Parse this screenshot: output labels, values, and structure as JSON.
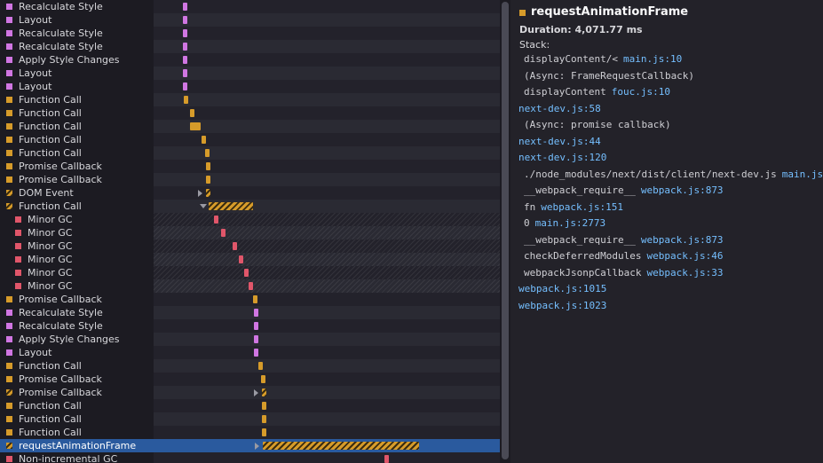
{
  "colors": {
    "layout": "#d076e2",
    "js": "#d69b2a",
    "gc": "#e0566a",
    "selected_row": "#2a5a9e",
    "link": "#75bfff"
  },
  "markers": [
    {
      "name": "Recalculate Style",
      "color": "layout"
    },
    {
      "name": "Layout",
      "color": "layout"
    },
    {
      "name": "Recalculate Style",
      "color": "layout"
    },
    {
      "name": "Recalculate Style",
      "color": "layout"
    },
    {
      "name": "Apply Style Changes",
      "color": "layout"
    },
    {
      "name": "Layout",
      "color": "layout"
    },
    {
      "name": "Layout",
      "color": "layout"
    },
    {
      "name": "Function Call",
      "color": "js"
    },
    {
      "name": "Function Call",
      "color": "js"
    },
    {
      "name": "Function Call",
      "color": "js"
    },
    {
      "name": "Function Call",
      "color": "js"
    },
    {
      "name": "Function Call",
      "color": "js"
    },
    {
      "name": "Promise Callback",
      "color": "js"
    },
    {
      "name": "Promise Callback",
      "color": "js"
    },
    {
      "name": "DOM Event",
      "color": "js",
      "striped": true,
      "twisty": "right"
    },
    {
      "name": "Function Call",
      "color": "js",
      "striped": true,
      "twisty": "down"
    },
    {
      "name": "Minor GC",
      "color": "gc",
      "indent": true
    },
    {
      "name": "Minor GC",
      "color": "gc",
      "indent": true
    },
    {
      "name": "Minor GC",
      "color": "gc",
      "indent": true
    },
    {
      "name": "Minor GC",
      "color": "gc",
      "indent": true
    },
    {
      "name": "Minor GC",
      "color": "gc",
      "indent": true
    },
    {
      "name": "Minor GC",
      "color": "gc",
      "indent": true
    },
    {
      "name": "Promise Callback",
      "color": "js"
    },
    {
      "name": "Recalculate Style",
      "color": "layout"
    },
    {
      "name": "Recalculate Style",
      "color": "layout"
    },
    {
      "name": "Apply Style Changes",
      "color": "layout"
    },
    {
      "name": "Layout",
      "color": "layout"
    },
    {
      "name": "Function Call",
      "color": "js"
    },
    {
      "name": "Promise Callback",
      "color": "js"
    },
    {
      "name": "Promise Callback",
      "color": "js",
      "striped": true,
      "twisty": "right"
    },
    {
      "name": "Function Call",
      "color": "js"
    },
    {
      "name": "Function Call",
      "color": "js"
    },
    {
      "name": "Function Call",
      "color": "js"
    },
    {
      "name": "requestAnimationFrame",
      "color": "js",
      "striped": true,
      "twisty": "right",
      "selected": true
    },
    {
      "name": "Non-incremental GC",
      "color": "gc"
    }
  ],
  "details": {
    "title": "requestAnimationFrame",
    "duration": "Duration: 4,071.77 ms",
    "stack_label": "Stack:",
    "frames": [
      {
        "fn": "displayContent/<",
        "loc": "main.js:10",
        "indent": 1
      },
      {
        "fn": "(Async: FrameRequestCallback)",
        "loc": "",
        "indent": 1
      },
      {
        "fn": "displayContent",
        "loc": "fouc.js:10",
        "indent": 1
      },
      {
        "fn": "",
        "loc": "next-dev.js:58",
        "indent": 0
      },
      {
        "fn": "(Async: promise callback)",
        "loc": "",
        "indent": 1
      },
      {
        "fn": "",
        "loc": "next-dev.js:44",
        "indent": 0
      },
      {
        "fn": "",
        "loc": "next-dev.js:120",
        "indent": 0
      },
      {
        "fn": "./node_modules/next/dist/client/next-dev.js",
        "loc": "main.js",
        "indent": 1
      },
      {
        "fn": "__webpack_require__",
        "loc": "webpack.js:873",
        "indent": 1
      },
      {
        "fn": "fn",
        "loc": "webpack.js:151",
        "indent": 1
      },
      {
        "fn": "0",
        "loc": "main.js:2773",
        "indent": 1
      },
      {
        "fn": "__webpack_require__",
        "loc": "webpack.js:873",
        "indent": 1
      },
      {
        "fn": "checkDeferredModules",
        "loc": "webpack.js:46",
        "indent": 1
      },
      {
        "fn": "webpackJsonpCallback",
        "loc": "webpack.js:33",
        "indent": 1
      },
      {
        "fn": "",
        "loc": "webpack.js:1015",
        "indent": 0
      },
      {
        "fn": "",
        "loc": "webpack.js:1023",
        "indent": 0
      }
    ]
  }
}
